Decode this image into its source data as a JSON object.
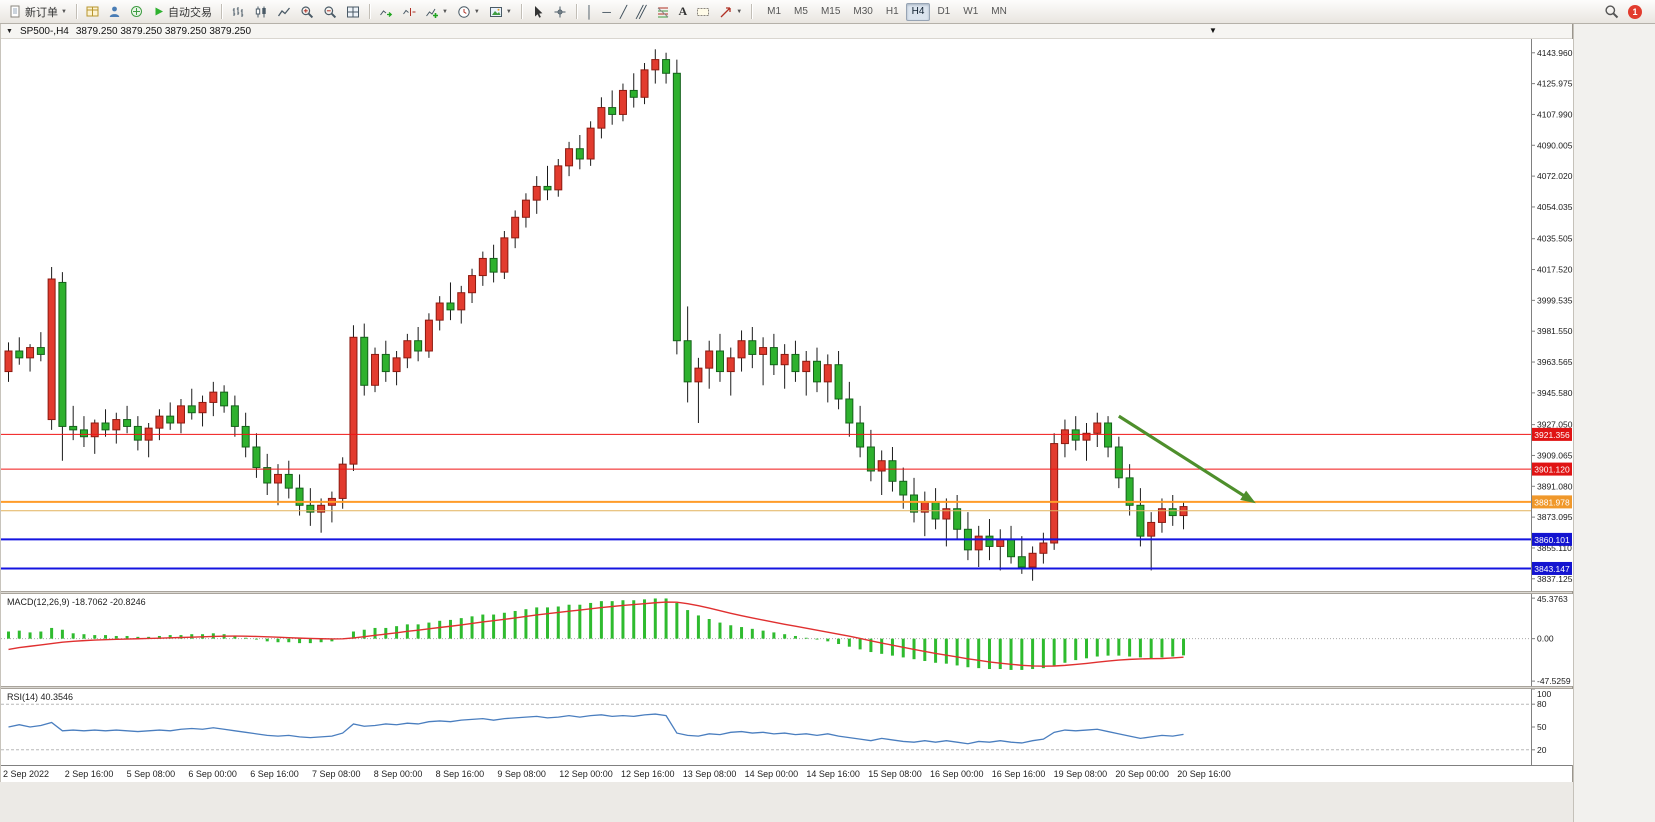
{
  "toolbar": {
    "new_order_label": "新订单",
    "auto_trading_label": "自动交易",
    "text_tool_label": "A",
    "timeframes": [
      "M1",
      "M5",
      "M15",
      "M30",
      "H1",
      "H4",
      "D1",
      "W1",
      "MN"
    ],
    "active_timeframe": "H4",
    "notification_count": "1"
  },
  "icons": {
    "caret_down": "▼",
    "vline": "│",
    "hline": "─",
    "trendline": "╱",
    "channel": "╱╱"
  },
  "chart": {
    "titlebar": {
      "symbol": "SP500-,H4",
      "quotes": "3879.250 3879.250 3879.250 3879.250"
    },
    "price_axis": {
      "ticks": [
        "4143.960",
        "4125.975",
        "4107.990",
        "4090.005",
        "4072.020",
        "4054.035",
        "4035.505",
        "4017.520",
        "3999.535",
        "3981.550",
        "3963.565",
        "3945.580",
        "3927.050",
        "3909.065",
        "3891.080",
        "3873.095",
        "3855.110",
        "3837.125"
      ]
    },
    "levels": [
      {
        "price": 3921.356,
        "label": "3921.356",
        "color": "#f01414",
        "badge_bg": "#e01414",
        "width": 1
      },
      {
        "price": 3901.12,
        "label": "3901.120",
        "color": "#f01414",
        "badge_bg": "#e01414",
        "width": 1
      },
      {
        "price": 3881.978,
        "label": "3881.978",
        "color": "#ff9c2a",
        "badge_bg": "#f0982a",
        "width": 2
      },
      {
        "price": 3876.8,
        "label": "",
        "color": "#e2b25c",
        "badge_bg": "",
        "width": 1
      },
      {
        "price": 3860.101,
        "label": "3860.101",
        "color": "#1414e0",
        "badge_bg": "#1414d0",
        "width": 2
      },
      {
        "price": 3843.147,
        "label": "3843.147",
        "color": "#1414e0",
        "badge_bg": "#1414d0",
        "width": 2
      }
    ],
    "arrow": {
      "from_index": 103,
      "from_price": 3932,
      "to_index": 115,
      "to_price": 3884,
      "color": "#4e8f2c"
    }
  },
  "chart_data": {
    "type": "candlestick",
    "symbol": "SP500-",
    "timeframe": "H4",
    "price_range": [
      3830,
      4152
    ],
    "colors": {
      "up": "#e23b2e",
      "up_stroke": "#8c1a10",
      "down": "#2eb12e",
      "down_stroke": "#14621a",
      "wick": "#1a1a1a",
      "macd_histogram": "#2fbb2f",
      "macd_signal": "#e03030",
      "rsi": "#4a7ebf"
    },
    "dates": [
      "2 Sep 2022",
      "2 Sep 16:00",
      "5 Sep 08:00",
      "6 Sep 00:00",
      "6 Sep 16:00",
      "7 Sep 08:00",
      "8 Sep 00:00",
      "8 Sep 16:00",
      "9 Sep 08:00",
      "12 Sep 00:00",
      "12 Sep 16:00",
      "13 Sep 08:00",
      "14 Sep 00:00",
      "14 Sep 16:00",
      "15 Sep 08:00",
      "16 Sep 00:00",
      "16 Sep 16:00",
      "19 Sep 08:00",
      "20 Sep 00:00",
      "20 Sep 16:00"
    ],
    "ohlc": [
      [
        3958,
        3975,
        3952,
        3970
      ],
      [
        3970,
        3978,
        3962,
        3966
      ],
      [
        3966,
        3974,
        3958,
        3972
      ],
      [
        3972,
        3981,
        3964,
        3968
      ],
      [
        3930,
        4019,
        3924,
        4012
      ],
      [
        4010,
        4016,
        3906,
        3926
      ],
      [
        3926,
        3938,
        3918,
        3924
      ],
      [
        3924,
        3932,
        3914,
        3920
      ],
      [
        3920,
        3930,
        3910,
        3928
      ],
      [
        3928,
        3936,
        3920,
        3924
      ],
      [
        3924,
        3934,
        3916,
        3930
      ],
      [
        3930,
        3938,
        3922,
        3926
      ],
      [
        3926,
        3932,
        3912,
        3918
      ],
      [
        3918,
        3928,
        3908,
        3925
      ],
      [
        3925,
        3936,
        3918,
        3932
      ],
      [
        3932,
        3940,
        3924,
        3928
      ],
      [
        3928,
        3942,
        3922,
        3938
      ],
      [
        3938,
        3948,
        3930,
        3934
      ],
      [
        3934,
        3944,
        3926,
        3940
      ],
      [
        3940,
        3952,
        3932,
        3946
      ],
      [
        3946,
        3950,
        3934,
        3938
      ],
      [
        3938,
        3944,
        3920,
        3926
      ],
      [
        3926,
        3934,
        3908,
        3914
      ],
      [
        3914,
        3922,
        3896,
        3902
      ],
      [
        3902,
        3910,
        3886,
        3893
      ],
      [
        3893,
        3904,
        3880,
        3898
      ],
      [
        3898,
        3906,
        3884,
        3890
      ],
      [
        3890,
        3898,
        3874,
        3880
      ],
      [
        3880,
        3890,
        3868,
        3876
      ],
      [
        3876,
        3884,
        3864,
        3880
      ],
      [
        3880,
        3888,
        3870,
        3884
      ],
      [
        3884,
        3908,
        3878,
        3904
      ],
      [
        3904,
        3985,
        3900,
        3978
      ],
      [
        3978,
        3986,
        3944,
        3950
      ],
      [
        3950,
        3972,
        3946,
        3968
      ],
      [
        3968,
        3976,
        3952,
        3958
      ],
      [
        3958,
        3970,
        3950,
        3966
      ],
      [
        3966,
        3980,
        3960,
        3976
      ],
      [
        3976,
        3984,
        3964,
        3970
      ],
      [
        3970,
        3992,
        3966,
        3988
      ],
      [
        3988,
        4002,
        3982,
        3998
      ],
      [
        3998,
        4010,
        3988,
        3994
      ],
      [
        3994,
        4008,
        3986,
        4004
      ],
      [
        4004,
        4018,
        3998,
        4014
      ],
      [
        4014,
        4028,
        4008,
        4024
      ],
      [
        4024,
        4032,
        4010,
        4016
      ],
      [
        4016,
        4040,
        4012,
        4036
      ],
      [
        4036,
        4052,
        4030,
        4048
      ],
      [
        4048,
        4062,
        4042,
        4058
      ],
      [
        4058,
        4072,
        4050,
        4066
      ],
      [
        4066,
        4078,
        4058,
        4064
      ],
      [
        4064,
        4082,
        4060,
        4078
      ],
      [
        4078,
        4092,
        4072,
        4088
      ],
      [
        4088,
        4096,
        4076,
        4082
      ],
      [
        4082,
        4104,
        4078,
        4100
      ],
      [
        4100,
        4118,
        4094,
        4112
      ],
      [
        4112,
        4122,
        4102,
        4108
      ],
      [
        4108,
        4126,
        4104,
        4122
      ],
      [
        4122,
        4132,
        4112,
        4118
      ],
      [
        4118,
        4138,
        4114,
        4134
      ],
      [
        4134,
        4146,
        4126,
        4140
      ],
      [
        4140,
        4144,
        4126,
        4132
      ],
      [
        4132,
        4140,
        3968,
        3976
      ],
      [
        3976,
        3996,
        3940,
        3952
      ],
      [
        3952,
        3966,
        3928,
        3960
      ],
      [
        3960,
        3976,
        3948,
        3970
      ],
      [
        3970,
        3980,
        3952,
        3958
      ],
      [
        3958,
        3972,
        3944,
        3966
      ],
      [
        3966,
        3982,
        3958,
        3976
      ],
      [
        3976,
        3984,
        3960,
        3968
      ],
      [
        3968,
        3978,
        3950,
        3972
      ],
      [
        3972,
        3980,
        3956,
        3962
      ],
      [
        3962,
        3974,
        3948,
        3968
      ],
      [
        3968,
        3976,
        3952,
        3958
      ],
      [
        3958,
        3970,
        3944,
        3964
      ],
      [
        3964,
        3972,
        3946,
        3952
      ],
      [
        3952,
        3968,
        3940,
        3962
      ],
      [
        3962,
        3970,
        3936,
        3942
      ],
      [
        3942,
        3952,
        3920,
        3928
      ],
      [
        3928,
        3938,
        3908,
        3914
      ],
      [
        3914,
        3924,
        3894,
        3900
      ],
      [
        3900,
        3912,
        3886,
        3906
      ],
      [
        3906,
        3914,
        3888,
        3894
      ],
      [
        3894,
        3902,
        3878,
        3886
      ],
      [
        3886,
        3896,
        3870,
        3876
      ],
      [
        3876,
        3888,
        3862,
        3882
      ],
      [
        3882,
        3890,
        3866,
        3872
      ],
      [
        3872,
        3884,
        3856,
        3878
      ],
      [
        3878,
        3886,
        3860,
        3866
      ],
      [
        3866,
        3876,
        3848,
        3854
      ],
      [
        3854,
        3868,
        3844,
        3862
      ],
      [
        3862,
        3872,
        3848,
        3856
      ],
      [
        3856,
        3866,
        3842,
        3860
      ],
      [
        3860,
        3868,
        3846,
        3850
      ],
      [
        3850,
        3862,
        3840,
        3844
      ],
      [
        3844,
        3856,
        3836,
        3852
      ],
      [
        3852,
        3864,
        3846,
        3858
      ],
      [
        3858,
        3922,
        3854,
        3916
      ],
      [
        3916,
        3930,
        3908,
        3924
      ],
      [
        3924,
        3932,
        3912,
        3918
      ],
      [
        3918,
        3928,
        3906,
        3922
      ],
      [
        3922,
        3934,
        3914,
        3928
      ],
      [
        3928,
        3932,
        3908,
        3914
      ],
      [
        3914,
        3920,
        3890,
        3896
      ],
      [
        3896,
        3904,
        3874,
        3880
      ],
      [
        3880,
        3890,
        3856,
        3862
      ],
      [
        3862,
        3876,
        3842,
        3870
      ],
      [
        3870,
        3884,
        3864,
        3878
      ],
      [
        3878,
        3886,
        3868,
        3874
      ],
      [
        3874,
        3882,
        3866,
        3879.25
      ]
    ],
    "indicators": {
      "macd": {
        "label": "MACD(12,26,9) -18.7062 -20.8246",
        "axis": [
          "45.3763",
          "0.00",
          "-47.5259"
        ],
        "range": [
          -53,
          50
        ],
        "histogram": [
          8,
          9,
          7,
          8,
          12,
          10,
          6,
          5,
          4,
          4,
          3,
          3,
          2,
          2,
          3,
          4,
          4,
          5,
          5,
          6,
          5,
          3,
          1,
          -1,
          -3,
          -4,
          -4,
          -5,
          -5,
          -4,
          -3,
          0,
          8,
          10,
          12,
          12,
          14,
          16,
          16,
          18,
          20,
          21,
          23,
          25,
          27,
          27,
          29,
          31,
          33,
          35,
          35,
          36,
          38,
          38,
          40,
          42,
          42,
          43,
          43,
          44,
          45,
          45,
          40,
          32,
          26,
          22,
          18,
          15,
          13,
          11,
          9,
          7,
          5,
          3,
          1,
          -1,
          -3,
          -6,
          -9,
          -12,
          -15,
          -17,
          -19,
          -21,
          -23,
          -25,
          -27,
          -28,
          -30,
          -32,
          -33,
          -34,
          -34,
          -35,
          -35,
          -34,
          -33,
          -30,
          -27,
          -24,
          -22,
          -20,
          -19,
          -19,
          -20,
          -21,
          -22,
          -21,
          -20,
          -18.7
        ],
        "signal": [
          -12,
          -10,
          -8.5,
          -7,
          -5.5,
          -4,
          -3,
          -2.2,
          -1.6,
          -1.1,
          -0.7,
          -0.4,
          -0.1,
          0.2,
          0.5,
          0.9,
          1.3,
          1.7,
          2.1,
          2.5,
          2.8,
          2.9,
          2.8,
          2.5,
          2.1,
          1.6,
          1.1,
          0.6,
          0.2,
          -0.1,
          -0.3,
          -0.2,
          0.8,
          2.2,
          3.7,
          5.1,
          6.6,
          8.2,
          9.5,
          11,
          12.5,
          13.9,
          15.4,
          17,
          18.7,
          20.1,
          21.6,
          23.2,
          24.9,
          26.6,
          28,
          29.4,
          30.8,
          32,
          33.4,
          34.8,
          36,
          37.2,
          38.2,
          39.2,
          40.2,
          41,
          40.8,
          39.2,
          36.9,
          34.2,
          31.3,
          28.4,
          25.7,
          23.2,
          20.8,
          18.4,
          16.1,
          13.9,
          11.7,
          9.5,
          7.3,
          5,
          2.7,
          0.2,
          -2.4,
          -4.9,
          -7.3,
          -9.7,
          -12,
          -14.3,
          -16.5,
          -18.5,
          -20.5,
          -22.5,
          -24.3,
          -26,
          -27.4,
          -28.7,
          -29.8,
          -30.5,
          -30.8,
          -30.6,
          -29.9,
          -28.9,
          -27.7,
          -26.4,
          -25.1,
          -24,
          -23.2,
          -22.7,
          -22.4,
          -22.2,
          -21.6,
          -20.8
        ]
      },
      "rsi": {
        "label": "RSI(14) 40.3546",
        "axis": [
          "100",
          "80",
          "50",
          "20"
        ],
        "level_lines": [
          80,
          20
        ],
        "values": [
          50,
          53,
          50,
          52,
          56,
          45,
          46,
          45,
          46,
          45,
          46,
          45,
          44,
          45,
          46,
          45,
          47,
          48,
          47,
          49,
          47,
          45,
          43,
          41,
          39,
          38,
          39,
          37,
          36,
          37,
          38,
          42,
          54,
          51,
          52,
          54,
          53,
          55,
          54,
          57,
          58,
          57,
          59,
          60,
          61,
          59,
          61,
          62,
          63,
          64,
          62,
          63,
          65,
          63,
          65,
          66,
          64,
          65,
          64,
          66,
          67,
          65,
          42,
          39,
          38,
          41,
          40,
          43,
          44,
          42,
          43,
          41,
          42,
          40,
          41,
          39,
          41,
          38,
          36,
          34,
          32,
          35,
          33,
          31,
          30,
          32,
          30,
          32,
          30,
          28,
          31,
          30,
          32,
          30,
          29,
          32,
          34,
          43,
          46,
          45,
          46,
          47,
          44,
          41,
          38,
          35,
          37,
          39,
          38,
          40.35
        ]
      }
    }
  }
}
